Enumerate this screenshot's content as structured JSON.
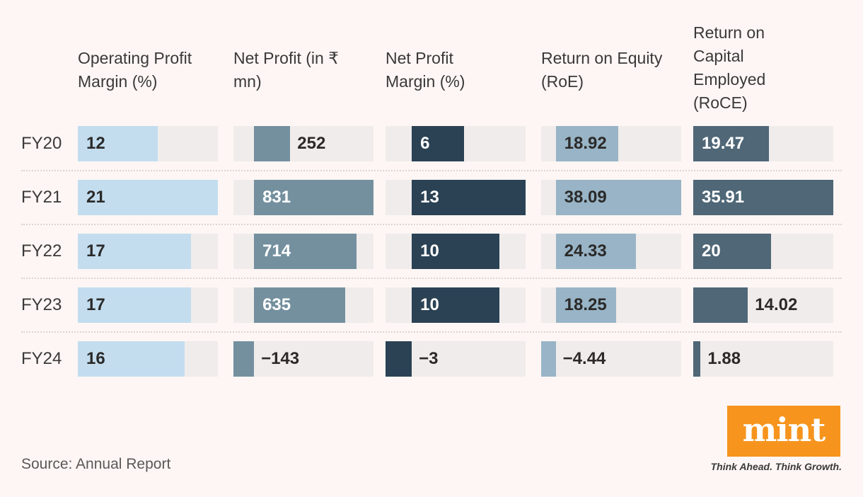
{
  "chart_data": {
    "type": "bar",
    "orientation": "horizontal",
    "row_labels": [
      "FY20",
      "FY21",
      "FY22",
      "FY23",
      "FY24"
    ],
    "columns": [
      {
        "label": "Operating Profit Margin (%)",
        "values": [
          12,
          21,
          17,
          17,
          16
        ],
        "display": [
          "12",
          "21",
          "17",
          "17",
          "16"
        ],
        "min": 0,
        "max": 21,
        "bar_color": "#c3ddef",
        "inside_text_color": "#2b2a29"
      },
      {
        "label": "Net Profit (in ₹ mn)",
        "values": [
          252,
          831,
          714,
          635,
          -143
        ],
        "display": [
          "252",
          "831",
          "714",
          "635",
          "−143"
        ],
        "min": -143,
        "max": 831,
        "bar_color": "#74909f",
        "inside_text_color": "#ffffff"
      },
      {
        "label": "Net Profit Margin (%)",
        "values": [
          6,
          13,
          10,
          10,
          -3
        ],
        "display": [
          "6",
          "13",
          "10",
          "10",
          "−3"
        ],
        "min": -3,
        "max": 13,
        "bar_color": "#2b4254",
        "inside_text_color": "#ffffff"
      },
      {
        "label": "Return on Equity (RoE)",
        "values": [
          18.92,
          38.09,
          24.33,
          18.25,
          -4.44
        ],
        "display": [
          "18.92",
          "38.09",
          "24.33",
          "18.25",
          "−4.44"
        ],
        "min": -4.44,
        "max": 38.09,
        "bar_color": "#98b4c6",
        "inside_text_color": "#2b2a29"
      },
      {
        "label": "Return on Capital Employed (RoCE)",
        "values": [
          19.47,
          35.91,
          20,
          14.02,
          1.88
        ],
        "display": [
          "19.47",
          "35.91",
          "20",
          "14.02",
          "1.88"
        ],
        "min": 0,
        "max": 35.91,
        "bar_color": "#4f6777",
        "inside_text_color": "#ffffff"
      }
    ],
    "outside_text_color": "#2b2a29",
    "track_color": "#f0eceb",
    "background_color": "#fdf6f4",
    "source": "Source: Annual Report"
  },
  "branding": {
    "logo_text": "mint",
    "tagline": "Think Ahead. Think Growth.",
    "logo_bg": "#f6941d"
  }
}
